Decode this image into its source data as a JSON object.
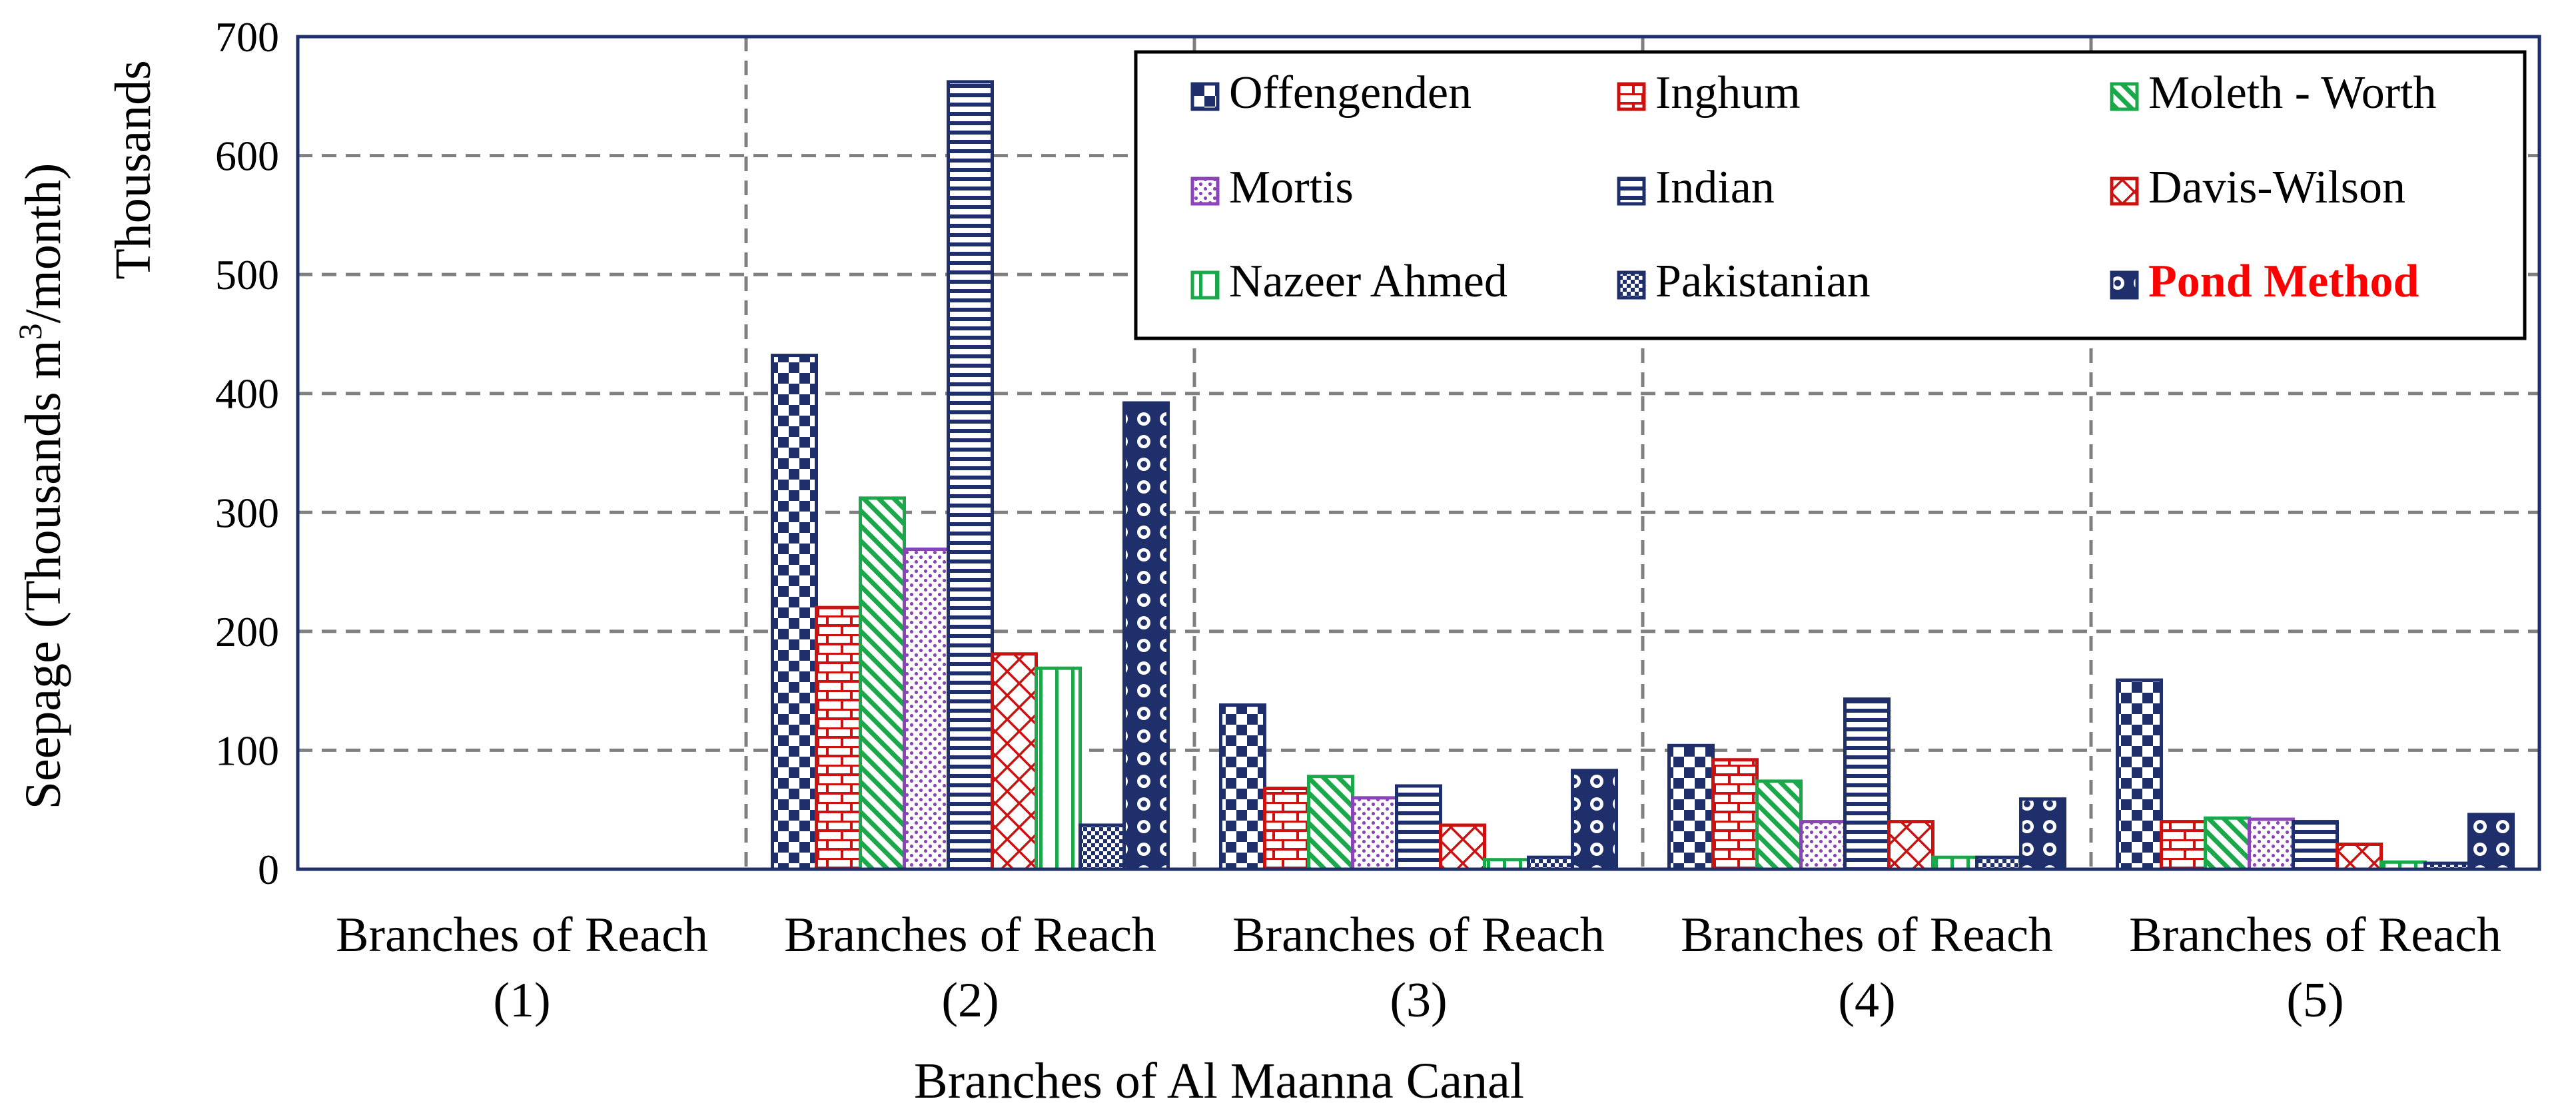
{
  "chart_data": {
    "type": "bar",
    "title": "",
    "xlabel": "Branches of Al Maanna Canal",
    "ylabel_main": "Seepage (Thousands m",
    "ylabel_sup": "3",
    "ylabel_tail": "/month)",
    "unit_label": "Thousands",
    "ylim": [
      0,
      700
    ],
    "yticks": [
      "0",
      "100",
      "200",
      "300",
      "400",
      "500",
      "600",
      "700"
    ],
    "grid": "dashed",
    "legend_position": "top-right",
    "categories": [
      {
        "line1": "Branches of Reach",
        "line2": "(1)"
      },
      {
        "line1": "Branches of Reach",
        "line2": "(2)"
      },
      {
        "line1": "Branches of Reach",
        "line2": "(3)"
      },
      {
        "line1": "Branches of Reach",
        "line2": "(4)"
      },
      {
        "line1": "Branches of Reach",
        "line2": "(5)"
      }
    ],
    "series": [
      {
        "name": "Offengenden",
        "color": "#1f2f6b",
        "pattern": "checker",
        "values": [
          0,
          432,
          138,
          104,
          159
        ]
      },
      {
        "name": "Inghum",
        "color": "#cc1111",
        "pattern": "brick",
        "values": [
          0,
          220,
          68,
          92,
          40
        ]
      },
      {
        "name": "Moleth - Worth",
        "color": "#1aa84a",
        "pattern": "diag",
        "values": [
          0,
          312,
          78,
          74,
          43
        ]
      },
      {
        "name": "Mortis",
        "color": "#8a44b8",
        "pattern": "dots",
        "values": [
          0,
          269,
          60,
          40,
          42
        ]
      },
      {
        "name": "Indian",
        "color": "#1f2f6b",
        "pattern": "hlines",
        "values": [
          0,
          662,
          70,
          143,
          40
        ]
      },
      {
        "name": "Davis-Wilson",
        "color": "#cc1111",
        "pattern": "cross",
        "values": [
          0,
          181,
          37,
          40,
          21
        ]
      },
      {
        "name": "Nazeer Ahmed",
        "color": "#1aa84a",
        "pattern": "vlines",
        "values": [
          0,
          169,
          8,
          10,
          6
        ]
      },
      {
        "name": "Pakistanian",
        "color": "#1f2f6b",
        "pattern": "smallcheck",
        "values": [
          0,
          37,
          10,
          10,
          5
        ]
      },
      {
        "name": "Pond Method",
        "color": "#1f2f6b",
        "pattern": "circles",
        "values": [
          0,
          392,
          83,
          59,
          46
        ]
      }
    ]
  }
}
